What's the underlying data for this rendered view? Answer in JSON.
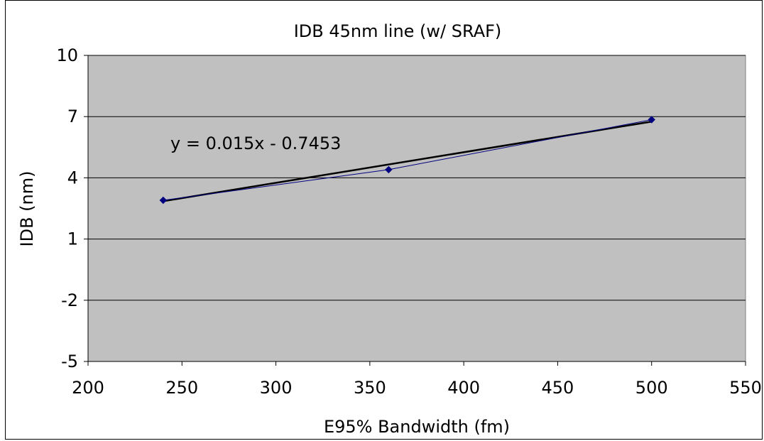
{
  "chart_data": {
    "type": "scatter",
    "title": "IDB 45nm line (w/ SRAF)",
    "xlabel": "E95% Bandwidth (fm)",
    "ylabel": "IDB (nm)",
    "xlim": [
      200,
      550
    ],
    "ylim": [
      -5,
      10
    ],
    "x_ticks": [
      "200",
      "250",
      "300",
      "350",
      "400",
      "450",
      "500",
      "550"
    ],
    "y_ticks": [
      "10",
      "7",
      "4",
      "1",
      "-2",
      "-5"
    ],
    "grid": "horizontal",
    "plot_background": "#c0c0c0",
    "series": [
      {
        "color": "#000080",
        "marker": "diamond",
        "x": [
          240,
          360,
          500
        ],
        "y": [
          2.9,
          4.4,
          6.85
        ]
      }
    ],
    "trendline": {
      "type": "linear",
      "slope": 0.015,
      "intercept": -0.7453,
      "label": "y = 0.015x - 0.7453",
      "x_range": [
        240,
        500
      ],
      "color": "#000000"
    }
  }
}
